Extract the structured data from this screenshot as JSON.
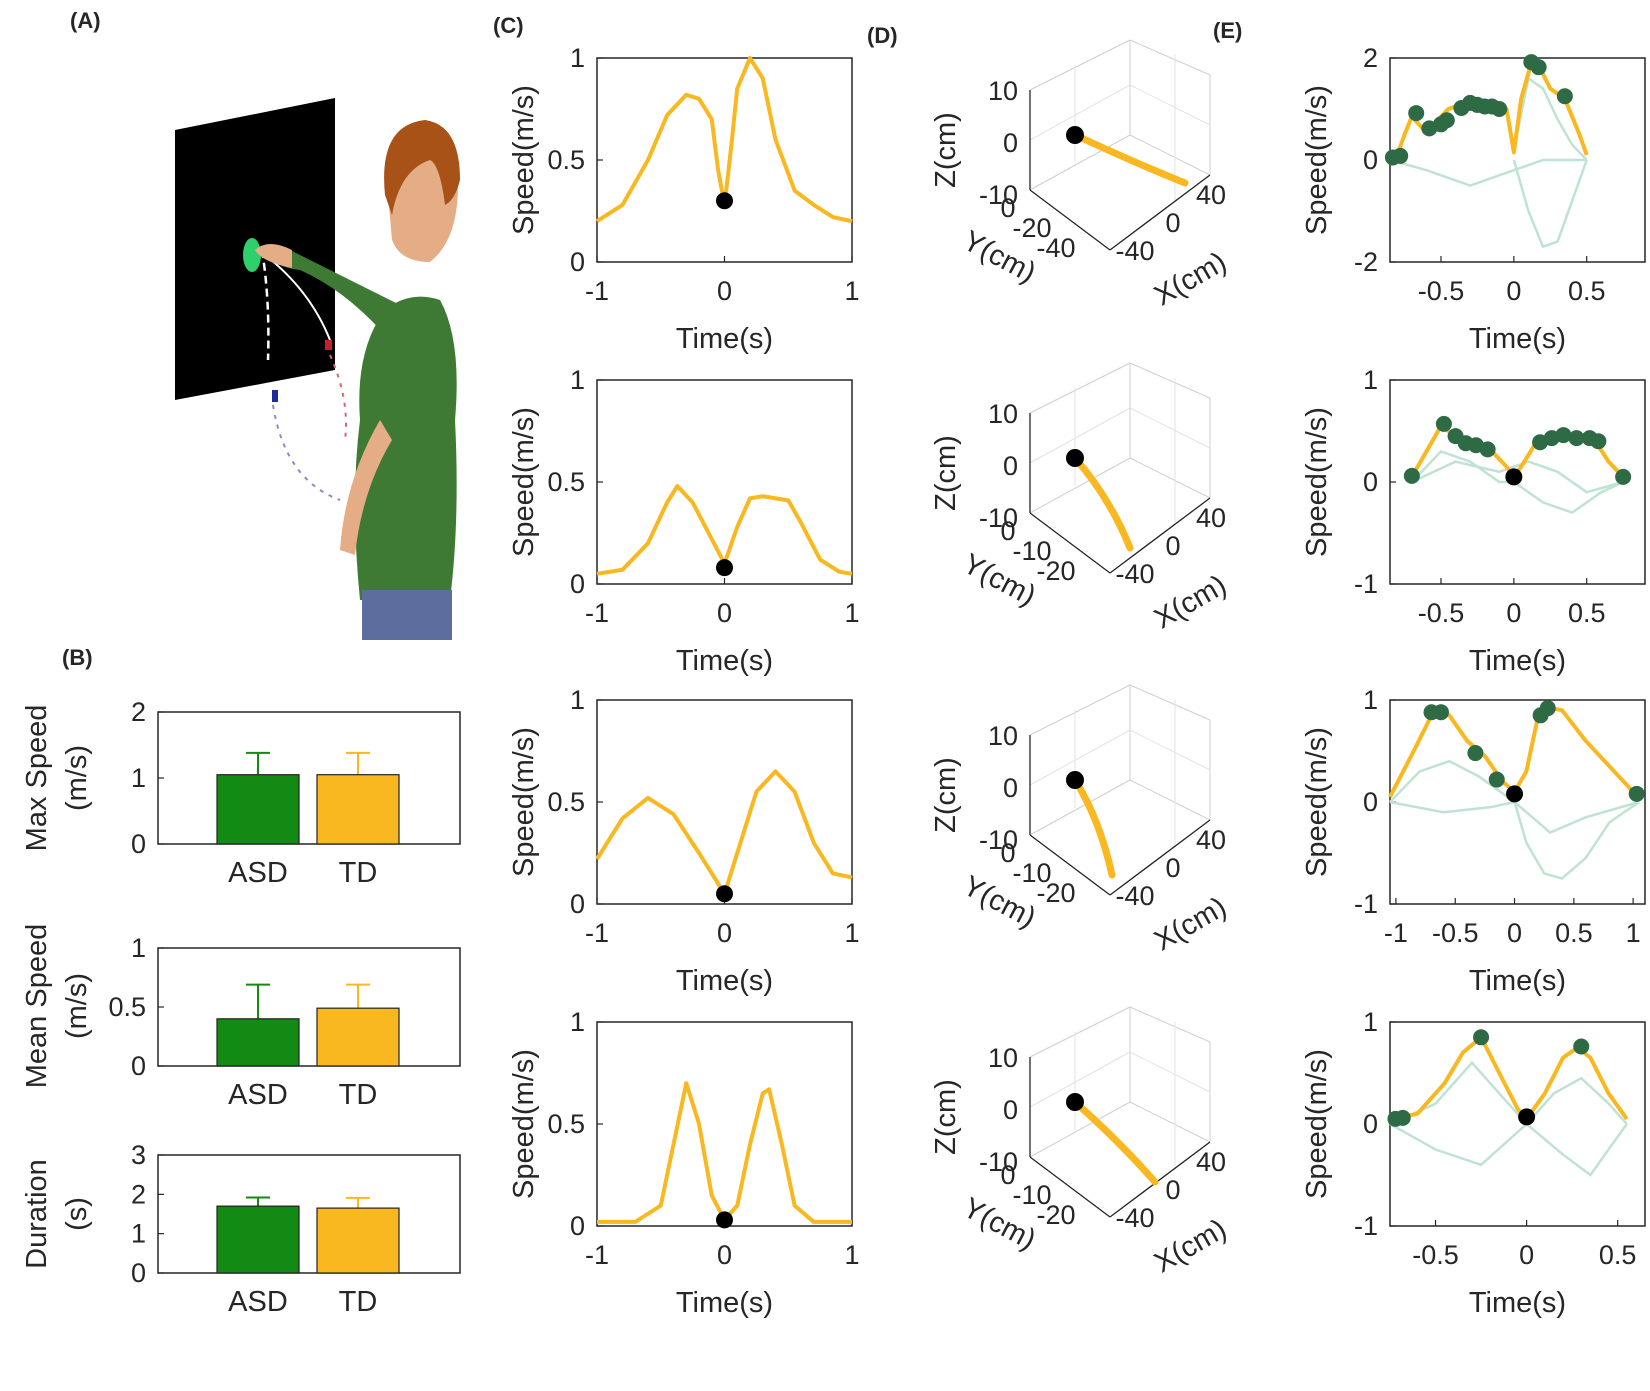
{
  "panels": {
    "a": "(A)",
    "b": "(B)",
    "c": "(C)",
    "d": "(D)",
    "e": "(E)"
  },
  "colors": {
    "asd": "#138a13",
    "td": "#f9b720",
    "dot_black": "#000000",
    "dot_green": "#2e6a44",
    "faint": "#bfe3d2"
  },
  "chart_data": [
    {
      "type": "bar",
      "panel": "B",
      "ylabel": "Max Speed (m/s)",
      "categories": [
        "ASD",
        "TD"
      ],
      "values": [
        1.05,
        1.05
      ],
      "errors": [
        0.33,
        0.33
      ],
      "ylim": [
        0,
        2
      ],
      "yticks": [
        "0",
        "1",
        "2"
      ]
    },
    {
      "type": "bar",
      "panel": "B",
      "ylabel": "Mean Speed (m/s)",
      "categories": [
        "ASD",
        "TD"
      ],
      "values": [
        0.4,
        0.49
      ],
      "errors": [
        0.29,
        0.2
      ],
      "ylim": [
        0,
        1
      ],
      "yticks": [
        "0",
        "0.5",
        "1"
      ]
    },
    {
      "type": "bar",
      "panel": "B",
      "ylabel": "Duration (s)",
      "categories": [
        "ASD",
        "TD"
      ],
      "values": [
        1.7,
        1.65
      ],
      "errors": [
        0.22,
        0.26
      ],
      "ylim": [
        0,
        3
      ],
      "yticks": [
        "0",
        "1",
        "2",
        "3"
      ]
    },
    {
      "type": "line",
      "panel": "C",
      "xlabel": "Time(s)",
      "ylabel": "Speed(m/s)",
      "xlim": [
        -1,
        1
      ],
      "ylim": [
        0,
        1
      ],
      "xticks": [
        "-1",
        "0",
        "1"
      ],
      "yticks": [
        "0",
        "0.5",
        "1"
      ],
      "x": [
        -1,
        -0.8,
        -0.6,
        -0.45,
        -0.3,
        -0.2,
        -0.1,
        -0.05,
        0,
        0.05,
        0.1,
        0.2,
        0.3,
        0.4,
        0.55,
        0.7,
        0.85,
        1
      ],
      "y": [
        0.2,
        0.28,
        0.5,
        0.72,
        0.82,
        0.8,
        0.7,
        0.45,
        0.28,
        0.55,
        0.85,
        1.0,
        0.9,
        0.6,
        0.35,
        0.28,
        0.22,
        0.2
      ],
      "marker": {
        "x": 0,
        "y": 0.3
      }
    },
    {
      "type": "line",
      "panel": "C",
      "xlabel": "Time(s)",
      "ylabel": "Speed(m/s)",
      "xlim": [
        -1,
        1
      ],
      "ylim": [
        0,
        1
      ],
      "xticks": [
        "-1",
        "0",
        "1"
      ],
      "yticks": [
        "0",
        "0.5",
        "1"
      ],
      "x": [
        -1,
        -0.8,
        -0.6,
        -0.45,
        -0.37,
        -0.25,
        -0.1,
        0,
        0.1,
        0.2,
        0.3,
        0.5,
        0.6,
        0.75,
        0.9,
        1
      ],
      "y": [
        0.05,
        0.07,
        0.2,
        0.4,
        0.48,
        0.4,
        0.22,
        0.1,
        0.28,
        0.42,
        0.43,
        0.41,
        0.3,
        0.12,
        0.06,
        0.05
      ],
      "marker": {
        "x": 0,
        "y": 0.08
      }
    },
    {
      "type": "line",
      "panel": "C",
      "xlabel": "Time(s)",
      "ylabel": "Speed(m/s)",
      "xlim": [
        -1,
        1
      ],
      "ylim": [
        0,
        1
      ],
      "xticks": [
        "-1",
        "0",
        "1"
      ],
      "yticks": [
        "0",
        "0.5",
        "1"
      ],
      "x": [
        -1,
        -0.8,
        -0.6,
        -0.4,
        -0.2,
        -0.05,
        0,
        0.1,
        0.25,
        0.4,
        0.55,
        0.7,
        0.85,
        1
      ],
      "y": [
        0.22,
        0.42,
        0.52,
        0.44,
        0.25,
        0.1,
        0.05,
        0.25,
        0.55,
        0.65,
        0.55,
        0.3,
        0.15,
        0.13
      ],
      "marker": {
        "x": 0,
        "y": 0.05
      }
    },
    {
      "type": "line",
      "panel": "C",
      "xlabel": "Time(s)",
      "ylabel": "Speed(m/s)",
      "xlim": [
        -1,
        1
      ],
      "ylim": [
        0,
        1
      ],
      "xticks": [
        "-1",
        "0",
        "1"
      ],
      "yticks": [
        "0",
        "0.5",
        "1"
      ],
      "x": [
        -1,
        -0.7,
        -0.5,
        -0.4,
        -0.3,
        -0.2,
        -0.1,
        0,
        0.1,
        0.2,
        0.3,
        0.35,
        0.45,
        0.55,
        0.7,
        1
      ],
      "y": [
        0.02,
        0.02,
        0.1,
        0.4,
        0.7,
        0.5,
        0.15,
        0.03,
        0.1,
        0.4,
        0.65,
        0.67,
        0.4,
        0.1,
        0.02,
        0.02
      ],
      "marker": {
        "x": 0,
        "y": 0.03
      }
    },
    {
      "type": "line",
      "panel": "D",
      "xlabel": "X(cm)",
      "ylabel": "Y(cm)",
      "zlabel": "Z(cm)",
      "zticks": [
        "10",
        "0",
        "-10"
      ],
      "yticks": [
        "0",
        "-20",
        "-40"
      ],
      "xticks": [
        "-40",
        "0",
        "40"
      ]
    },
    {
      "type": "line",
      "panel": "D",
      "xlabel": "X(cm)",
      "ylabel": "Y(cm)",
      "zlabel": "Z(cm)",
      "zticks": [
        "10",
        "0",
        "-10"
      ],
      "yticks": [
        "0",
        "-10",
        "-20"
      ],
      "xticks": [
        "-40",
        "0",
        "40"
      ]
    },
    {
      "type": "line",
      "panel": "D",
      "xlabel": "X(cm)",
      "ylabel": "Y(cm)",
      "zlabel": "Z(cm)",
      "zticks": [
        "10",
        "0",
        "-10"
      ],
      "yticks": [
        "0",
        "-10",
        "-20"
      ],
      "xticks": [
        "-40",
        "0",
        "40"
      ]
    },
    {
      "type": "line",
      "panel": "D",
      "xlabel": "X(cm)",
      "ylabel": "Y(cm)",
      "zlabel": "Z(cm)",
      "zticks": [
        "10",
        "0",
        "-10"
      ],
      "yticks": [
        "0",
        "-10",
        "-20"
      ],
      "xticks": [
        "-40",
        "0",
        "40"
      ]
    },
    {
      "type": "line",
      "panel": "E",
      "xlabel": "Time(s)",
      "ylabel": "Speed(m/s)",
      "xlim": [
        -0.85,
        0.9
      ],
      "ylim": [
        -2,
        2
      ],
      "xticks": [
        {
          "v": -0.5,
          "t": "-0.5"
        },
        {
          "v": 0,
          "t": "0"
        },
        {
          "v": 0.5,
          "t": "0.5"
        }
      ],
      "yticks": [
        {
          "v": -2,
          "t": "-2"
        },
        {
          "v": 0,
          "t": "0"
        },
        {
          "v": 2,
          "t": "2"
        }
      ],
      "x": [
        -0.85,
        -0.8,
        -0.75,
        -0.7,
        -0.62,
        -0.55,
        -0.45,
        -0.35,
        -0.25,
        -0.15,
        -0.05,
        0,
        0.05,
        0.12,
        0.18,
        0.25,
        0.35,
        0.45,
        0.5
      ],
      "y": [
        0.05,
        0.1,
        0.5,
        0.85,
        0.6,
        0.7,
        1.0,
        1.1,
        1.1,
        1.1,
        1.0,
        0.15,
        1.2,
        1.9,
        1.8,
        1.4,
        1.2,
        0.5,
        0.1
      ],
      "markers": [
        {
          "x": -0.83,
          "y": 0.05
        },
        {
          "x": -0.78,
          "y": 0.08
        },
        {
          "x": -0.67,
          "y": 0.92
        },
        {
          "x": -0.58,
          "y": 0.62
        },
        {
          "x": -0.5,
          "y": 0.7
        },
        {
          "x": -0.46,
          "y": 0.78
        },
        {
          "x": -0.36,
          "y": 1.02
        },
        {
          "x": -0.3,
          "y": 1.12
        },
        {
          "x": -0.25,
          "y": 1.08
        },
        {
          "x": -0.2,
          "y": 1.05
        },
        {
          "x": -0.15,
          "y": 1.05
        },
        {
          "x": -0.1,
          "y": 1.0
        },
        {
          "x": 0.12,
          "y": 1.92
        },
        {
          "x": 0.17,
          "y": 1.82
        },
        {
          "x": 0.35,
          "y": 1.25
        }
      ],
      "faint": [
        {
          "x": [
            -0.85,
            -0.6,
            -0.3,
            0,
            0.2,
            0.5
          ],
          "y": [
            0,
            -0.2,
            -0.5,
            -0.2,
            0,
            0
          ]
        },
        {
          "x": [
            0,
            0.1,
            0.2,
            0.3,
            0.4,
            0.5
          ],
          "y": [
            0,
            -1.0,
            -1.7,
            -1.6,
            -0.8,
            0
          ]
        },
        {
          "x": [
            0,
            0.1,
            0.2,
            0.3,
            0.4,
            0.5
          ],
          "y": [
            0.2,
            1.6,
            1.4,
            0.8,
            0.3,
            0
          ]
        }
      ]
    },
    {
      "type": "line",
      "panel": "E",
      "xlabel": "Time(s)",
      "ylabel": "Speed(m/s)",
      "xlim": [
        -0.85,
        0.9
      ],
      "ylim": [
        -1,
        1
      ],
      "xticks": [
        {
          "v": -0.5,
          "t": "-0.5"
        },
        {
          "v": 0,
          "t": "0"
        },
        {
          "v": 0.5,
          "t": "0.5"
        }
      ],
      "yticks": [
        {
          "v": -1,
          "t": "-1"
        },
        {
          "v": 0,
          "t": "0"
        },
        {
          "v": 1,
          "t": "1"
        }
      ],
      "x": [
        -0.7,
        -0.6,
        -0.5,
        -0.45,
        -0.35,
        -0.25,
        -0.15,
        -0.05,
        0,
        0.05,
        0.15,
        0.25,
        0.35,
        0.45,
        0.55,
        0.65,
        0.75
      ],
      "y": [
        0.05,
        0.3,
        0.55,
        0.5,
        0.38,
        0.35,
        0.3,
        0.15,
        0.05,
        0.15,
        0.38,
        0.42,
        0.45,
        0.43,
        0.42,
        0.2,
        0.05
      ],
      "markers": [
        {
          "x": -0.7,
          "y": 0.06
        },
        {
          "x": -0.48,
          "y": 0.57
        },
        {
          "x": -0.4,
          "y": 0.45
        },
        {
          "x": -0.33,
          "y": 0.38
        },
        {
          "x": -0.26,
          "y": 0.36
        },
        {
          "x": -0.18,
          "y": 0.32
        },
        {
          "x": 0.18,
          "y": 0.39
        },
        {
          "x": 0.26,
          "y": 0.43
        },
        {
          "x": 0.34,
          "y": 0.46
        },
        {
          "x": 0.43,
          "y": 0.43
        },
        {
          "x": 0.52,
          "y": 0.43
        },
        {
          "x": 0.58,
          "y": 0.4
        },
        {
          "x": 0.75,
          "y": 0.05
        }
      ],
      "black": {
        "x": 0,
        "y": 0.05
      },
      "faint": [
        {
          "x": [
            -0.7,
            -0.5,
            -0.3,
            -0.1,
            0,
            0.2,
            0.4,
            0.6,
            0.75
          ],
          "y": [
            0,
            0.3,
            0.2,
            0,
            0,
            -0.2,
            -0.3,
            -0.1,
            0
          ]
        },
        {
          "x": [
            -0.7,
            -0.4,
            -0.1,
            0.1,
            0.3,
            0.5,
            0.75
          ],
          "y": [
            0,
            0.2,
            0.1,
            0.2,
            0.1,
            -0.1,
            0
          ]
        }
      ]
    },
    {
      "type": "line",
      "panel": "E",
      "xlabel": "Time(s)",
      "ylabel": "Speed(m/s)",
      "xlim": [
        -1.05,
        1.1
      ],
      "ylim": [
        -1,
        1
      ],
      "xticks": [
        {
          "v": -1,
          "t": "-1"
        },
        {
          "v": -0.5,
          "t": "-0.5"
        },
        {
          "v": 0,
          "t": "0"
        },
        {
          "v": 0.5,
          "t": "0.5"
        },
        {
          "v": 1,
          "t": "1"
        }
      ],
      "yticks": [
        {
          "v": -1,
          "t": "-1"
        },
        {
          "v": 0,
          "t": "0"
        },
        {
          "v": 1,
          "t": "1"
        }
      ],
      "x": [
        -1.05,
        -0.85,
        -0.7,
        -0.55,
        -0.4,
        -0.25,
        -0.1,
        0,
        0.1,
        0.2,
        0.3,
        0.4,
        0.6,
        0.8,
        1.0,
        1.05
      ],
      "y": [
        0.05,
        0.5,
        0.85,
        0.85,
        0.6,
        0.45,
        0.2,
        0.1,
        0.3,
        0.85,
        0.92,
        0.9,
        0.6,
        0.35,
        0.1,
        0.05
      ],
      "markers": [
        {
          "x": -0.7,
          "y": 0.88
        },
        {
          "x": -0.62,
          "y": 0.88
        },
        {
          "x": -0.33,
          "y": 0.48
        },
        {
          "x": -0.15,
          "y": 0.22
        },
        {
          "x": 0.22,
          "y": 0.85
        },
        {
          "x": 0.28,
          "y": 0.92
        },
        {
          "x": 1.03,
          "y": 0.08
        }
      ],
      "black": {
        "x": 0,
        "y": 0.08
      },
      "faint": [
        {
          "x": [
            -1.05,
            -0.8,
            -0.55,
            -0.3,
            0,
            0.3,
            0.6,
            1.05
          ],
          "y": [
            0,
            0.3,
            0.4,
            0.25,
            0,
            -0.3,
            -0.15,
            0
          ]
        },
        {
          "x": [
            0,
            0.1,
            0.25,
            0.4,
            0.6,
            0.8,
            1.05
          ],
          "y": [
            0,
            -0.4,
            -0.7,
            -0.75,
            -0.55,
            -0.2,
            0
          ]
        },
        {
          "x": [
            -1.05,
            -0.6,
            -0.2,
            0
          ],
          "y": [
            0,
            -0.1,
            -0.05,
            0
          ]
        }
      ]
    },
    {
      "type": "line",
      "panel": "E",
      "xlabel": "Time(s)",
      "ylabel": "Speed(m/s)",
      "xlim": [
        -0.75,
        0.65
      ],
      "ylim": [
        -1,
        1
      ],
      "xticks": [
        {
          "v": -0.5,
          "t": "-0.5"
        },
        {
          "v": 0,
          "t": "0"
        },
        {
          "v": 0.5,
          "t": "0.5"
        }
      ],
      "yticks": [
        {
          "v": -1,
          "t": "-1"
        },
        {
          "v": 0,
          "t": "0"
        },
        {
          "v": 1,
          "t": "1"
        }
      ],
      "x": [
        -0.75,
        -0.6,
        -0.45,
        -0.35,
        -0.25,
        -0.15,
        -0.05,
        0,
        0.1,
        0.2,
        0.28,
        0.35,
        0.45,
        0.55
      ],
      "y": [
        0.05,
        0.1,
        0.4,
        0.7,
        0.85,
        0.5,
        0.15,
        0.05,
        0.3,
        0.65,
        0.75,
        0.65,
        0.3,
        0.05
      ],
      "markers": [
        {
          "x": -0.72,
          "y": 0.05
        },
        {
          "x": -0.68,
          "y": 0.06
        },
        {
          "x": -0.25,
          "y": 0.85
        },
        {
          "x": 0.3,
          "y": 0.76
        }
      ],
      "black": {
        "x": 0,
        "y": 0.07
      },
      "faint": [
        {
          "x": [
            -0.75,
            -0.5,
            -0.3,
            -0.15,
            0,
            0.15,
            0.3,
            0.45,
            0.55
          ],
          "y": [
            0,
            0.2,
            0.6,
            0.3,
            0,
            0.3,
            0.45,
            0.2,
            0
          ]
        },
        {
          "x": [
            -0.75,
            -0.5,
            -0.25,
            0,
            0.2,
            0.35,
            0.55
          ],
          "y": [
            0,
            -0.25,
            -0.4,
            0,
            -0.3,
            -0.5,
            0
          ]
        }
      ]
    }
  ]
}
